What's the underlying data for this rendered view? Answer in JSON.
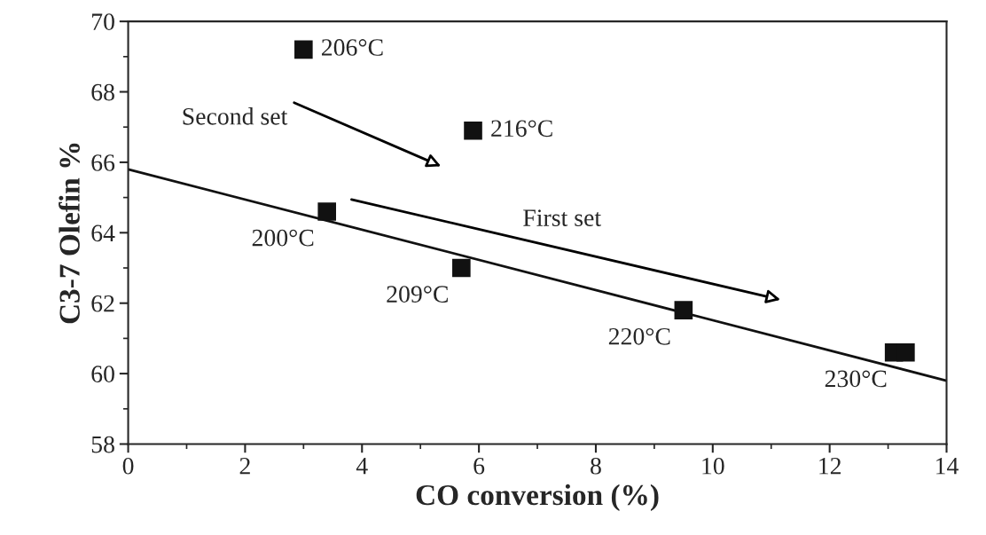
{
  "chart_data": {
    "type": "scatter",
    "xlabel": "CO conversion (%)",
    "ylabel": "C3-7 Olefin %",
    "xlim": [
      0,
      14
    ],
    "ylim": [
      58,
      70
    ],
    "xticks": [
      0,
      2,
      4,
      6,
      8,
      10,
      12,
      14
    ],
    "yticks": [
      58,
      60,
      62,
      64,
      66,
      68,
      70
    ],
    "grid": false,
    "series": [
      {
        "marker": "square",
        "color": "#111111",
        "x": [
          3.0,
          5.9,
          3.4,
          5.7,
          9.5,
          13.1,
          13.3
        ],
        "values": [
          69.2,
          66.9,
          64.6,
          63.0,
          61.8,
          60.6,
          60.6
        ]
      },
      {
        "type": "line",
        "color": "#111111",
        "x": [
          0,
          14
        ],
        "values": [
          65.8,
          59.8
        ]
      }
    ],
    "annotations": [
      {
        "text": "206°C",
        "x": 3.0,
        "y": 69.2
      },
      {
        "text": "216°C",
        "x": 5.9,
        "y": 66.9
      },
      {
        "text": "200°C",
        "x": 3.4,
        "y": 64.6
      },
      {
        "text": "209°C",
        "x": 5.7,
        "y": 63.0
      },
      {
        "text": "220°C",
        "x": 9.5,
        "y": 61.8
      },
      {
        "text": "230°C",
        "x": 13.2,
        "y": 60.6
      },
      "Second set",
      "First set"
    ]
  }
}
